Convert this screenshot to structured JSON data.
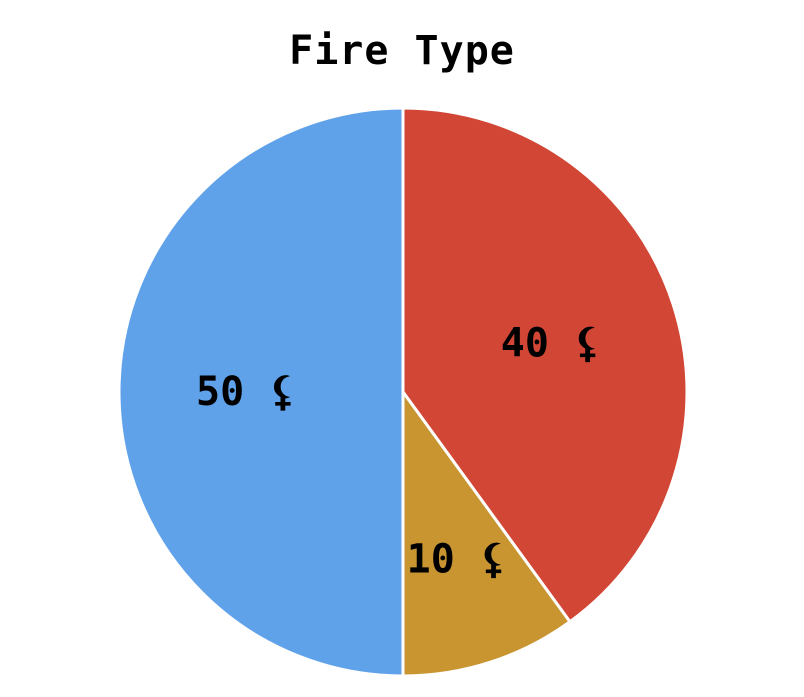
{
  "chart_data": {
    "type": "pie",
    "title": "Fire Type",
    "start_angle_deg": 0,
    "direction": "clockwise",
    "slices": [
      {
        "label": "40 ⚸",
        "value": 40,
        "color": "#d24635"
      },
      {
        "label": "10 ⚸",
        "value": 10,
        "color": "#c89531"
      },
      {
        "label": "50 ⚸",
        "value": 50,
        "color": "#60a2ea"
      }
    ]
  }
}
